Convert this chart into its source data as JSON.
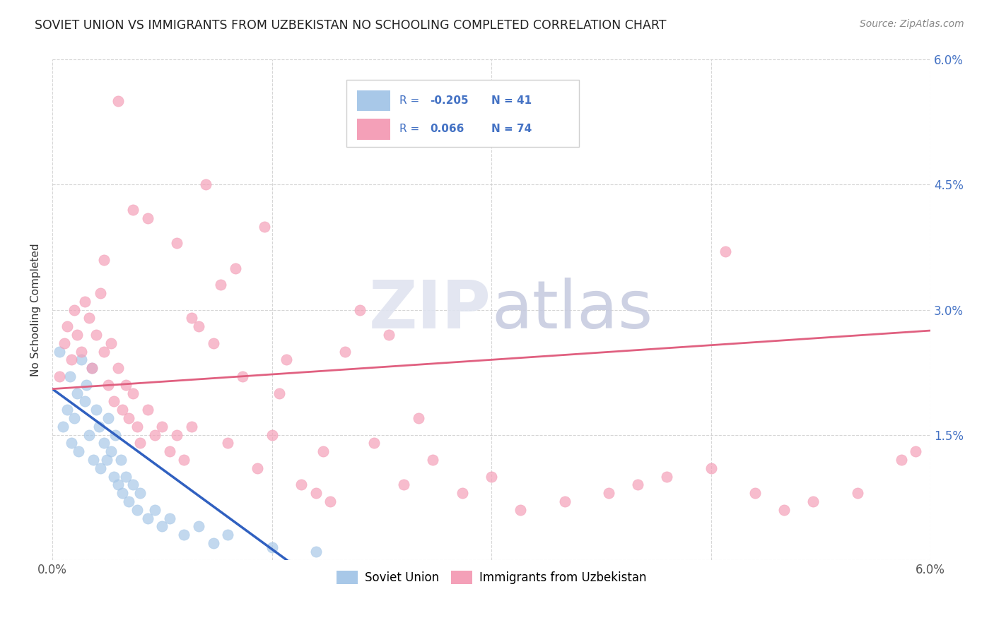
{
  "title": "SOVIET UNION VS IMMIGRANTS FROM UZBEKISTAN NO SCHOOLING COMPLETED CORRELATION CHART",
  "source": "Source: ZipAtlas.com",
  "ylabel": "No Schooling Completed",
  "legend_label1": "Soviet Union",
  "legend_label2": "Immigrants from Uzbekistan",
  "r1": "-0.205",
  "n1": "41",
  "r2": "0.066",
  "n2": "74",
  "color_blue": "#a8c8e8",
  "color_pink": "#f4a0b8",
  "line_blue": "#3060c0",
  "line_pink": "#e06080",
  "line_blue_dash": "#b8d0f0",
  "xlim": [
    0.0,
    6.0
  ],
  "ylim": [
    0.0,
    6.0
  ],
  "grid_color": "#cccccc",
  "watermark": "ZIPatlas",
  "watermark_color": "#e0e4f0",
  "soviet_x": [
    0.05,
    0.07,
    0.1,
    0.12,
    0.13,
    0.15,
    0.17,
    0.18,
    0.2,
    0.22,
    0.23,
    0.25,
    0.27,
    0.28,
    0.3,
    0.32,
    0.33,
    0.35,
    0.37,
    0.38,
    0.4,
    0.42,
    0.43,
    0.45,
    0.47,
    0.48,
    0.5,
    0.52,
    0.55,
    0.58,
    0.6,
    0.65,
    0.7,
    0.75,
    0.8,
    0.9,
    1.0,
    1.1,
    1.2,
    1.5,
    1.8
  ],
  "soviet_y": [
    2.5,
    1.6,
    1.8,
    2.2,
    1.4,
    1.7,
    2.0,
    1.3,
    2.4,
    1.9,
    2.1,
    1.5,
    2.3,
    1.2,
    1.8,
    1.6,
    1.1,
    1.4,
    1.2,
    1.7,
    1.3,
    1.0,
    1.5,
    0.9,
    1.2,
    0.8,
    1.0,
    0.7,
    0.9,
    0.6,
    0.8,
    0.5,
    0.6,
    0.4,
    0.5,
    0.3,
    0.4,
    0.2,
    0.3,
    0.15,
    0.1
  ],
  "uzbek_x": [
    0.05,
    0.08,
    0.1,
    0.13,
    0.15,
    0.17,
    0.2,
    0.22,
    0.25,
    0.27,
    0.3,
    0.33,
    0.35,
    0.38,
    0.4,
    0.42,
    0.45,
    0.48,
    0.5,
    0.52,
    0.55,
    0.58,
    0.6,
    0.65,
    0.7,
    0.75,
    0.8,
    0.85,
    0.9,
    0.95,
    1.0,
    1.1,
    1.2,
    1.3,
    1.4,
    1.5,
    1.6,
    1.7,
    1.8,
    1.9,
    2.0,
    2.2,
    2.4,
    2.6,
    2.8,
    3.0,
    3.2,
    3.5,
    3.8,
    4.0,
    4.2,
    4.5,
    4.8,
    5.0,
    5.2,
    5.5,
    0.45,
    0.55,
    0.85,
    1.05,
    1.25,
    1.45,
    2.1,
    2.5,
    0.35,
    0.65,
    0.95,
    1.15,
    1.55,
    1.85,
    2.3,
    4.6,
    5.8,
    5.9
  ],
  "uzbek_y": [
    2.2,
    2.6,
    2.8,
    2.4,
    3.0,
    2.7,
    2.5,
    3.1,
    2.9,
    2.3,
    2.7,
    3.2,
    2.5,
    2.1,
    2.6,
    1.9,
    2.3,
    1.8,
    2.1,
    1.7,
    2.0,
    1.6,
    1.4,
    1.8,
    1.5,
    1.6,
    1.3,
    1.5,
    1.2,
    1.6,
    2.8,
    2.6,
    1.4,
    2.2,
    1.1,
    1.5,
    2.4,
    0.9,
    0.8,
    0.7,
    2.5,
    1.4,
    0.9,
    1.2,
    0.8,
    1.0,
    0.6,
    0.7,
    0.8,
    0.9,
    1.0,
    1.1,
    0.8,
    0.6,
    0.7,
    0.8,
    5.5,
    4.2,
    3.8,
    4.5,
    3.5,
    4.0,
    3.0,
    1.7,
    3.6,
    4.1,
    2.9,
    3.3,
    2.0,
    1.3,
    2.7,
    3.7,
    1.2,
    1.3
  ]
}
